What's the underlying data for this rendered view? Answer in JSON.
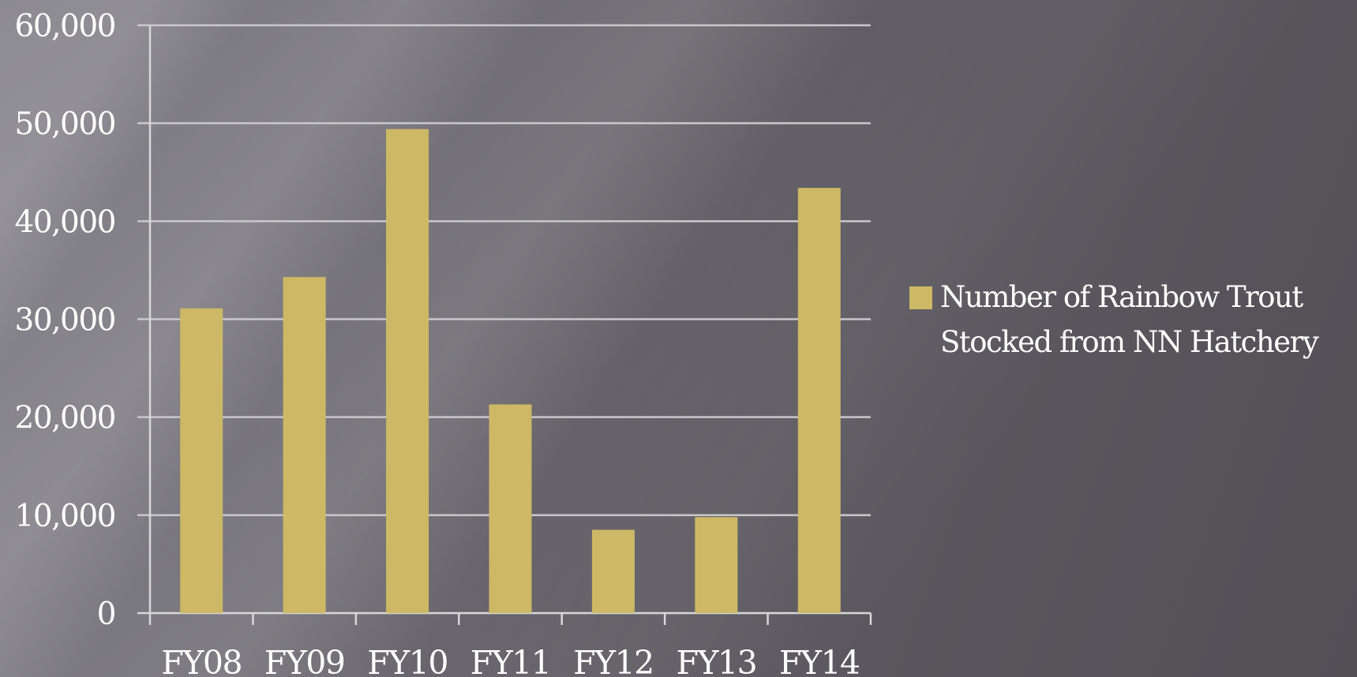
{
  "colors": {
    "bar": "#cdb866",
    "grid": "#c9c8cc",
    "axis": "#d8d7da",
    "text": "#ffffff"
  },
  "chart_data": {
    "type": "bar",
    "categories": [
      "FY08",
      "FY09",
      "FY10",
      "FY11",
      "FY12",
      "FY13",
      "FY14"
    ],
    "series": [
      {
        "name": "Number of Rainbow Trout Stocked from NN Hatchery",
        "values": [
          31100,
          34300,
          49400,
          21300,
          8500,
          9800,
          43400
        ]
      }
    ],
    "ylim": [
      0,
      60000
    ],
    "yticks": [
      0,
      10000,
      20000,
      30000,
      40000,
      50000,
      60000
    ],
    "ytick_labels": [
      "0",
      "10,000",
      "20,000",
      "30,000",
      "40,000",
      "50,000",
      "60,000"
    ],
    "grid": true,
    "legend_position": "right"
  },
  "legend": {
    "label": "Number of Rainbow Trout Stocked from NN Hatchery"
  }
}
